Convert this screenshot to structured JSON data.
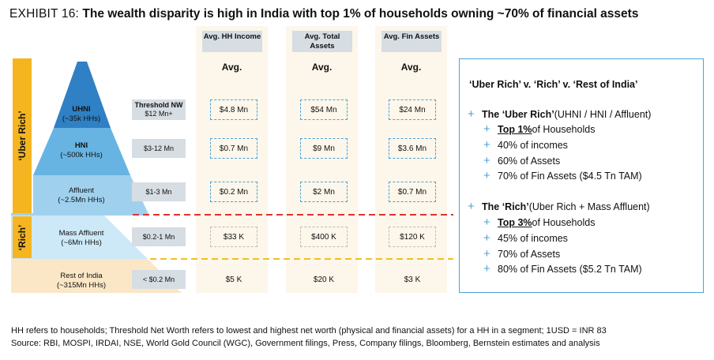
{
  "title": {
    "prefix": "EXHIBIT 16:",
    "text": "The wealth disparity is high in India with top 1% of households owning ~70% of financial assets"
  },
  "brackets": {
    "uber": "‘Uber Rich’",
    "rich": "‘Rich’"
  },
  "chart_data": {
    "type": "table",
    "columns": [
      "Avg. HH Income",
      "Avg. Total Assets",
      "Avg. Fin Assets"
    ],
    "subheader": "Avg.",
    "threshold_header": "Threshold NW",
    "rows": [
      {
        "tier": "UHNI",
        "households": "(~35k HHs)",
        "threshold": "$12 Mn+",
        "values": [
          "$4.8 Mn",
          "$54 Mn",
          "$24 Mn"
        ]
      },
      {
        "tier": "HNI",
        "households": "(~500k HHs)",
        "threshold": "$3-12 Mn",
        "values": [
          "$0.7 Mn",
          "$9 Mn",
          "$3.6 Mn"
        ]
      },
      {
        "tier": "Affluent",
        "households": "(~2.5Mn HHs)",
        "threshold": "$1-3 Mn",
        "values": [
          "$0.2 Mn",
          "$2 Mn",
          "$0.7 Mn"
        ]
      },
      {
        "tier": "Mass Affluent",
        "households": "(~6Mn HHs)",
        "threshold": "$0.2-1 Mn",
        "values": [
          "$33 K",
          "$400 K",
          "$120 K"
        ]
      },
      {
        "tier": "Rest of India",
        "households": "(~315Mn HHs)",
        "threshold": "< $0.2 Mn",
        "values": [
          "$5 K",
          "$20 K",
          "$3 K"
        ]
      }
    ]
  },
  "panel": {
    "heading": "‘Uber Rich’ v. ‘Rich’ v. ‘Rest of India’",
    "group1": {
      "title_bold": "The ‘Uber Rich’",
      "title_rest": " (UHNI / HNI / Affluent)",
      "first_bold": "Top 1%",
      "first_rest": " of Households",
      "items": [
        "40% of incomes",
        "60% of Assets",
        "70% of Fin Assets ($4.5 Tn TAM)"
      ]
    },
    "group2": {
      "title_bold": "The ‘Rich’",
      "title_rest": " (Uber Rich + Mass Affluent)",
      "first_bold": "Top 3%",
      "first_rest": " of Households",
      "items": [
        "45% of incomes",
        "70% of Assets",
        "80% of Fin Assets ($5.2 Tn TAM)"
      ]
    }
  },
  "footnotes": [
    "HH refers to households; Threshold Net Worth refers to lowest and highest net worth (physical and financial assets) for a HH in a segment; 1USD = INR 83",
    "Source: RBI, MOSPI, IRDAI, NSE, World Gold Council (WGC), Government filings, Press, Company filings, Bloomberg, Bernstein estimates and analysis"
  ],
  "colors": {
    "uhni": "#2f80c4",
    "hni": "#67b4e3",
    "affluent": "#9fd1ef",
    "mass_affluent": "#cde8f6",
    "rest": "#fbe7c6",
    "uber_bracket": "#f5b521",
    "red_line": "#e03131",
    "yellow_line": "#f0c020",
    "accent": "#4aa3d8"
  }
}
